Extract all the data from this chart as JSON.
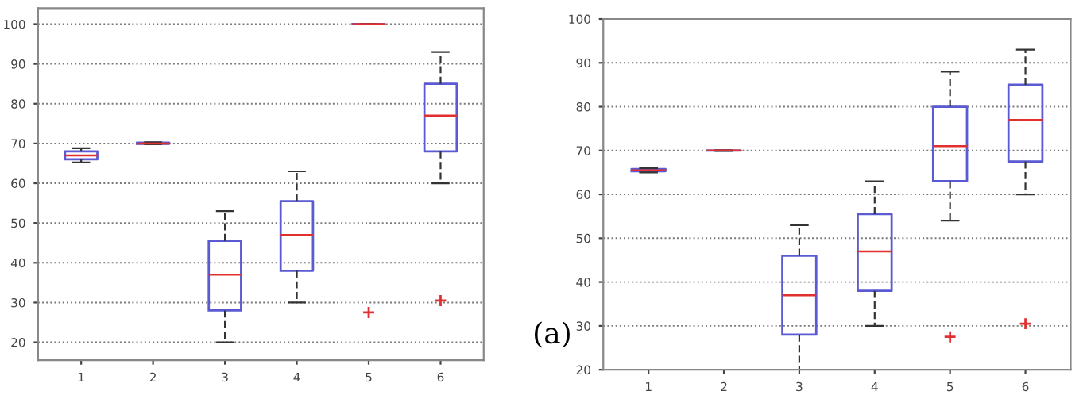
{
  "chart_data": [
    {
      "type": "box",
      "categories": [
        "1",
        "2",
        "3",
        "4",
        "5",
        "6"
      ],
      "ylim": [
        15.5,
        104
      ],
      "yticks": [
        20,
        30,
        40,
        50,
        60,
        70,
        80,
        90,
        100
      ],
      "grid": "y",
      "color": "#5a5ad2",
      "boxes": [
        {
          "low": 65.2,
          "q1": 66,
          "median": 67,
          "q3": 68,
          "high": 68.8
        },
        {
          "low": 69.8,
          "q1": 69.9,
          "median": 70,
          "q3": 70.2,
          "high": 70.3
        },
        {
          "low": 20,
          "q1": 28,
          "median": 37,
          "q3": 45.5,
          "high": 53
        },
        {
          "low": 30,
          "q1": 38,
          "median": 47,
          "q3": 55.5,
          "high": 63
        },
        {
          "low": 100,
          "q1": 100,
          "median": 100,
          "q3": 100,
          "high": 100,
          "outliers": [
            27.5
          ]
        },
        {
          "low": 60,
          "q1": 68,
          "median": 77,
          "q3": 85,
          "high": 93,
          "outliers": [
            30.5
          ]
        }
      ]
    },
    {
      "type": "box",
      "categories": [
        "1",
        "2",
        "3",
        "4",
        "5",
        "6"
      ],
      "ylim": [
        20,
        100
      ],
      "yticks": [
        20,
        30,
        40,
        50,
        60,
        70,
        80,
        90,
        100
      ],
      "grid": "y",
      "color": "#5a5ad2",
      "annotations": [
        "(a)"
      ],
      "boxes": [
        {
          "low": 65,
          "q1": 65.3,
          "median": 65.5,
          "q3": 65.8,
          "high": 66
        },
        {
          "low": 69.9,
          "q1": 70,
          "median": 70,
          "q3": 70,
          "high": 70.1
        },
        {
          "low": 20,
          "q1": 28,
          "median": 37,
          "q3": 46,
          "high": 53
        },
        {
          "low": 30,
          "q1": 38,
          "median": 47,
          "q3": 55.5,
          "high": 63
        },
        {
          "low": 54,
          "q1": 63,
          "median": 71,
          "q3": 80,
          "high": 88,
          "outliers": [
            27.5
          ]
        },
        {
          "low": 60,
          "q1": 67.5,
          "median": 77,
          "q3": 85,
          "high": 93,
          "outliers": [
            30.5
          ]
        }
      ]
    }
  ]
}
